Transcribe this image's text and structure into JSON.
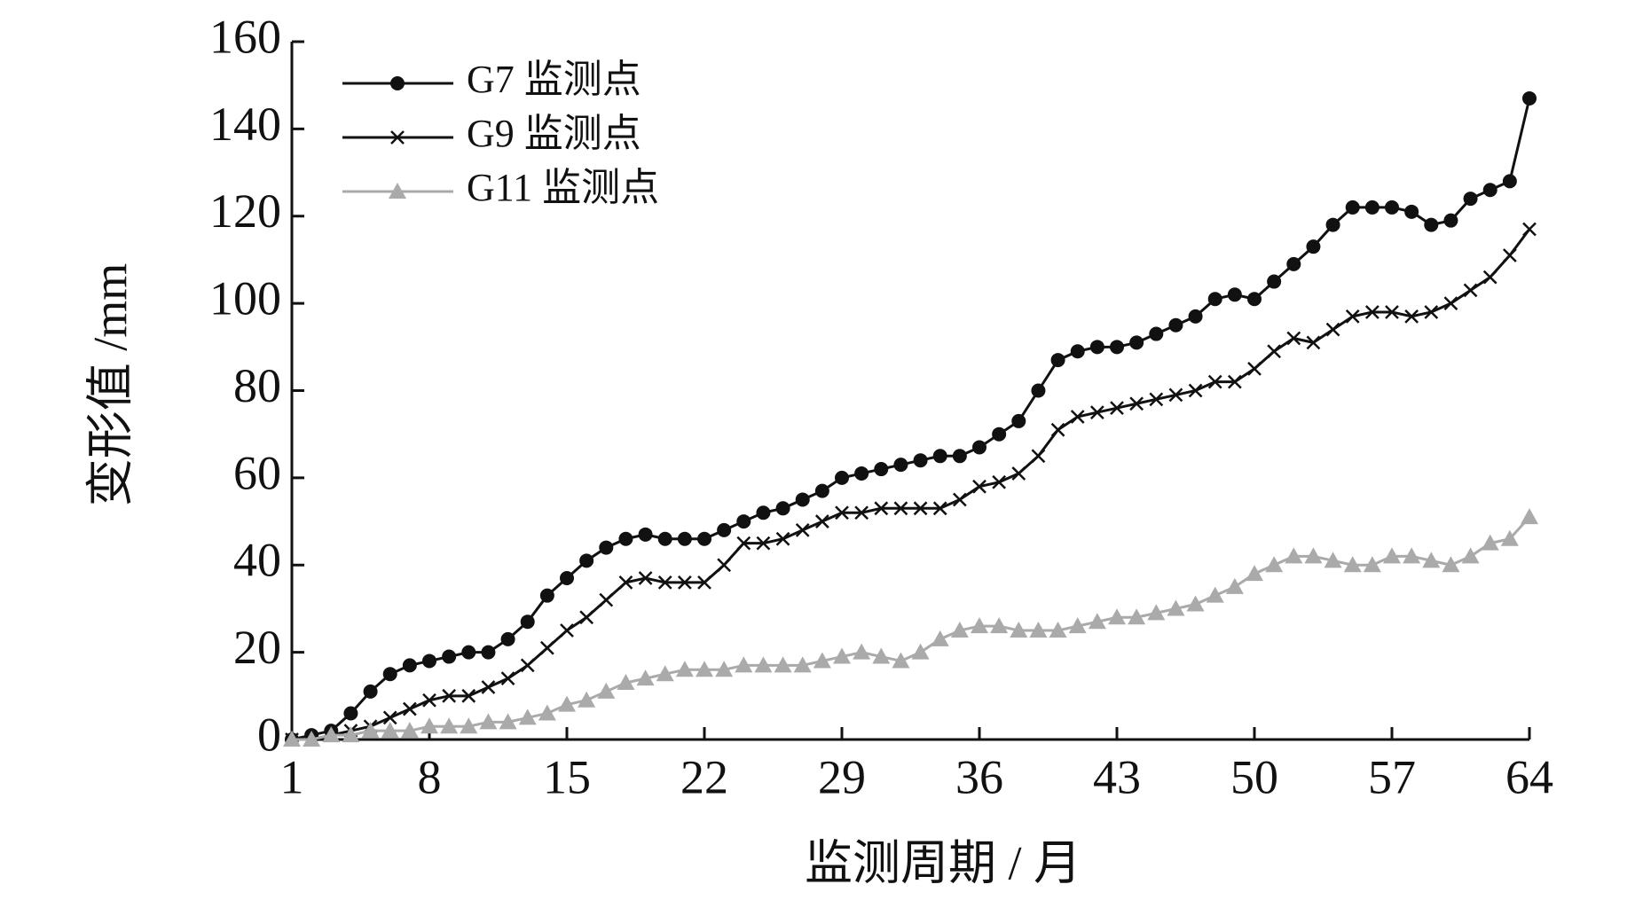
{
  "chart_data": {
    "type": "line",
    "xlabel": "监测周期 / 月",
    "ylabel": "变形值 /mm",
    "x": [
      1,
      2,
      3,
      4,
      5,
      6,
      7,
      8,
      9,
      10,
      11,
      12,
      13,
      14,
      15,
      16,
      17,
      18,
      19,
      20,
      21,
      22,
      23,
      24,
      25,
      26,
      27,
      28,
      29,
      30,
      31,
      32,
      33,
      34,
      35,
      36,
      37,
      38,
      39,
      40,
      41,
      42,
      43,
      44,
      45,
      46,
      47,
      48,
      49,
      50,
      51,
      52,
      53,
      54,
      55,
      56,
      57,
      58,
      59,
      60,
      61,
      62,
      63,
      64
    ],
    "series": [
      {
        "name": "G7 监测点",
        "color": "#111111",
        "marker": "circle",
        "values": [
          0,
          1,
          2,
          6,
          11,
          15,
          17,
          18,
          19,
          20,
          20,
          23,
          27,
          33,
          37,
          41,
          44,
          46,
          47,
          46,
          46,
          46,
          48,
          50,
          52,
          53,
          55,
          57,
          60,
          61,
          62,
          63,
          64,
          65,
          65,
          67,
          70,
          73,
          80,
          87,
          89,
          90,
          90,
          91,
          93,
          95,
          97,
          101,
          102,
          101,
          105,
          109,
          113,
          118,
          122,
          122,
          122,
          121,
          118,
          119,
          124,
          126,
          128,
          147
        ]
      },
      {
        "name": "G9 监测点",
        "color": "#111111",
        "marker": "x",
        "values": [
          0,
          0,
          1,
          2,
          3,
          5,
          7,
          9,
          10,
          10,
          12,
          14,
          17,
          21,
          25,
          28,
          32,
          36,
          37,
          36,
          36,
          36,
          40,
          45,
          45,
          46,
          48,
          50,
          52,
          52,
          53,
          53,
          53,
          53,
          55,
          58,
          59,
          61,
          65,
          71,
          74,
          75,
          76,
          77,
          78,
          79,
          80,
          82,
          82,
          85,
          89,
          92,
          91,
          94,
          97,
          98,
          98,
          97,
          98,
          100,
          103,
          106,
          111,
          117
        ]
      },
      {
        "name": "G11 监测点",
        "color": "#aaaaaa",
        "marker": "triangle",
        "values": [
          0,
          0,
          1,
          1,
          2,
          2,
          2,
          3,
          3,
          3,
          4,
          4,
          5,
          6,
          8,
          9,
          11,
          13,
          14,
          15,
          16,
          16,
          16,
          17,
          17,
          17,
          17,
          18,
          19,
          20,
          19,
          18,
          20,
          23,
          25,
          26,
          26,
          25,
          25,
          25,
          26,
          27,
          28,
          28,
          29,
          30,
          31,
          33,
          35,
          38,
          40,
          42,
          42,
          41,
          40,
          40,
          42,
          42,
          41,
          40,
          42,
          45,
          46,
          51
        ]
      }
    ],
    "xlim": [
      1,
      64
    ],
    "xticks": [
      1,
      8,
      15,
      22,
      29,
      36,
      43,
      50,
      57,
      64
    ],
    "ylim": [
      0,
      160
    ],
    "yticks": [
      0,
      20,
      40,
      60,
      80,
      100,
      120,
      140,
      160
    ],
    "legend": "upper left",
    "grid": false
  }
}
